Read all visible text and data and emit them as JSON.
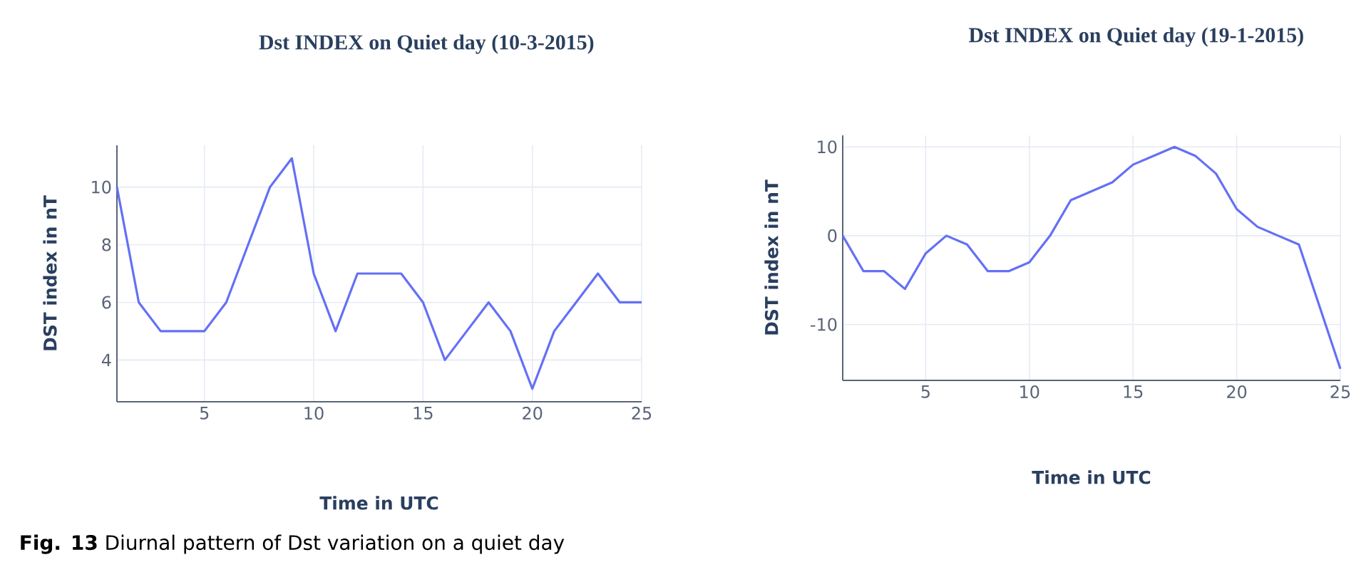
{
  "chart_data": [
    {
      "type": "line",
      "title": "Dst  INDEX on Quiet day (10-3-2015)",
      "xlabel": "Time in UTC",
      "ylabel": "DST  index in nT",
      "x": [
        1,
        2,
        3,
        4,
        5,
        6,
        7,
        8,
        9,
        10,
        11,
        12,
        13,
        14,
        15,
        16,
        17,
        18,
        19,
        20,
        21,
        22,
        23,
        24,
        25
      ],
      "series": [
        {
          "color": "#6470f5",
          "values": [
            10,
            6,
            5,
            5,
            5,
            6,
            8,
            10,
            11,
            7,
            5,
            7,
            7,
            7,
            6,
            4,
            5,
            6,
            5,
            3,
            5,
            6,
            7,
            6,
            6
          ]
        }
      ],
      "xlim": [
        1,
        25
      ],
      "ylim": [
        2.55,
        11.45
      ],
      "xticks": [
        5,
        10,
        15,
        20,
        25
      ],
      "yticks": [
        4,
        6,
        8,
        10
      ],
      "grid": true,
      "marker": "none",
      "line_style": "solid",
      "annotations": [
        "**Fig. 13** Diurnal pattern of Dst variation on a quiet day"
      ]
    },
    {
      "type": "line",
      "title": "Dst  INDEX on Quiet day (19-1-2015)",
      "xlabel": "Time in UTC",
      "ylabel": "DST  index in nT",
      "x": [
        1,
        2,
        3,
        4,
        5,
        6,
        7,
        8,
        9,
        10,
        11,
        12,
        13,
        14,
        15,
        16,
        17,
        18,
        19,
        20,
        21,
        22,
        23,
        24,
        25
      ],
      "series": [
        {
          "color": "#6470f5",
          "values": [
            0,
            -4,
            -4,
            -6,
            -2,
            0,
            -1,
            -4,
            -4,
            -3,
            0,
            4,
            5,
            6,
            8,
            9,
            10,
            9,
            7,
            3,
            1,
            0,
            -1,
            -8,
            -15
          ]
        }
      ],
      "xlim": [
        1,
        25
      ],
      "ylim": [
        -16.3,
        11.3
      ],
      "xticks": [
        5,
        10,
        15,
        20,
        25
      ],
      "yticks": [
        -10,
        0,
        10
      ],
      "grid": true,
      "marker": "none",
      "line_style": "solid"
    }
  ]
}
